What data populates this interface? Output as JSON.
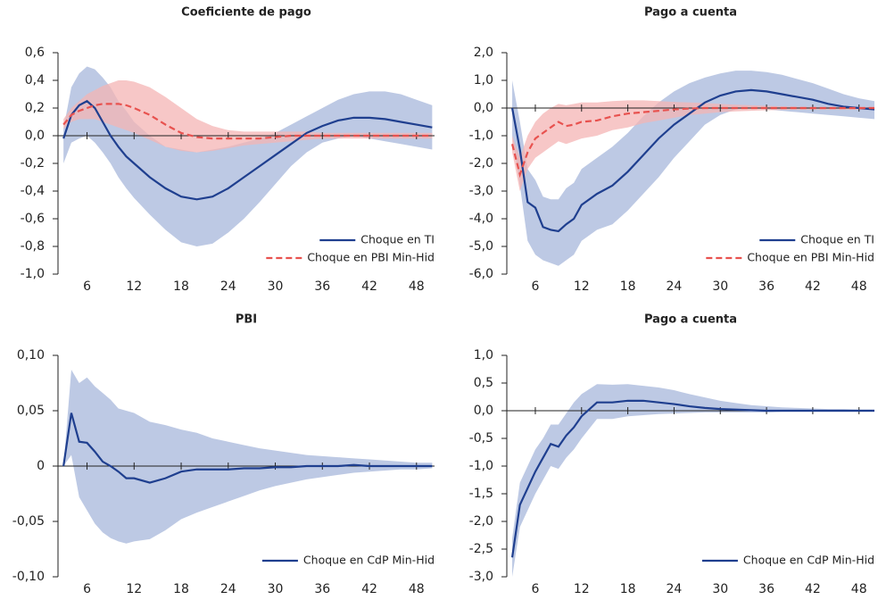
{
  "chart_data": [
    {
      "type": "line",
      "title": "Coeficiente de pago",
      "legend": "lower right",
      "x": [
        3,
        4,
        5,
        6,
        7,
        8,
        9,
        10,
        11,
        12,
        14,
        16,
        18,
        20,
        22,
        24,
        26,
        28,
        30,
        32,
        34,
        36,
        38,
        40,
        42,
        44,
        46,
        48,
        50
      ],
      "xlim": [
        2.3,
        50.3
      ],
      "xticks": [
        6,
        12,
        18,
        24,
        30,
        36,
        42,
        48
      ],
      "ylim": [
        -1.0,
        0.6
      ],
      "yticks": [
        {
          "value": 0.6,
          "label": "0,6"
        },
        {
          "value": 0.4,
          "label": "0,4"
        },
        {
          "value": 0.2,
          "label": "0,2"
        },
        {
          "value": 0,
          "label": "0,0"
        },
        {
          "value": -0.2,
          "label": "-0,2"
        },
        {
          "value": -0.4,
          "label": "-0,4"
        },
        {
          "value": -0.6,
          "label": "-0,6"
        },
        {
          "value": -0.8,
          "label": "-0,8"
        },
        {
          "value": -1.0,
          "label": "-1,0"
        }
      ],
      "bands": [
        {
          "color": "#a7b7db",
          "upper": [
            0.05,
            0.35,
            0.45,
            0.5,
            0.48,
            0.42,
            0.35,
            0.25,
            0.18,
            0.1,
            0.0,
            -0.08,
            -0.1,
            -0.12,
            -0.1,
            -0.08,
            -0.05,
            -0.02,
            0.02,
            0.08,
            0.14,
            0.2,
            0.26,
            0.3,
            0.32,
            0.32,
            0.3,
            0.26,
            0.22
          ],
          "lower": [
            -0.2,
            -0.05,
            -0.02,
            0.0,
            -0.05,
            -0.12,
            -0.2,
            -0.3,
            -0.38,
            -0.45,
            -0.57,
            -0.68,
            -0.77,
            -0.8,
            -0.78,
            -0.7,
            -0.6,
            -0.48,
            -0.35,
            -0.22,
            -0.12,
            -0.05,
            -0.02,
            0.0,
            -0.02,
            -0.04,
            -0.06,
            -0.08,
            -0.1
          ]
        },
        {
          "color": "#f4b4b4",
          "upper": [
            0.12,
            0.2,
            0.25,
            0.3,
            0.33,
            0.36,
            0.38,
            0.4,
            0.4,
            0.39,
            0.35,
            0.28,
            0.2,
            0.12,
            0.07,
            0.04,
            0.03,
            0.03,
            0.03,
            0.03,
            0.03,
            0.02,
            0.02,
            0.02,
            0.02,
            0.02,
            0.02,
            0.02,
            0.02
          ],
          "lower": [
            0.05,
            0.1,
            0.12,
            0.12,
            0.12,
            0.1,
            0.08,
            0.06,
            0.04,
            0.02,
            -0.03,
            -0.08,
            -0.11,
            -0.12,
            -0.11,
            -0.09,
            -0.07,
            -0.06,
            -0.05,
            -0.04,
            -0.03,
            -0.02,
            -0.02,
            -0.02,
            -0.02,
            -0.02,
            -0.02,
            -0.02,
            -0.02
          ]
        }
      ],
      "series": [
        {
          "name": "Choque en TI",
          "color": "#1f3f8f",
          "dash": false,
          "values": [
            -0.02,
            0.15,
            0.22,
            0.25,
            0.2,
            0.1,
            0.0,
            -0.08,
            -0.15,
            -0.2,
            -0.3,
            -0.38,
            -0.44,
            -0.46,
            -0.44,
            -0.38,
            -0.3,
            -0.22,
            -0.14,
            -0.06,
            0.02,
            0.07,
            0.11,
            0.13,
            0.13,
            0.12,
            0.1,
            0.08,
            0.06
          ]
        },
        {
          "name": "Choque en PBI Min-Hid",
          "color": "#e8524f",
          "dash": true,
          "values": [
            0.08,
            0.15,
            0.18,
            0.2,
            0.22,
            0.23,
            0.23,
            0.23,
            0.22,
            0.2,
            0.15,
            0.08,
            0.02,
            -0.01,
            -0.02,
            -0.02,
            -0.02,
            -0.02,
            -0.01,
            0.0,
            0.0,
            0.0,
            0.0,
            0.0,
            0.0,
            0.0,
            0.0,
            0.0,
            0.0
          ]
        }
      ]
    },
    {
      "type": "line",
      "title": "Pago a cuenta",
      "legend": "lower right",
      "x": [
        3,
        4,
        5,
        6,
        7,
        8,
        9,
        10,
        11,
        12,
        14,
        16,
        18,
        20,
        22,
        24,
        26,
        28,
        30,
        32,
        34,
        36,
        38,
        40,
        42,
        44,
        46,
        48,
        50
      ],
      "xlim": [
        2.3,
        50
      ],
      "xticks": [
        6,
        12,
        18,
        24,
        30,
        36,
        42,
        48
      ],
      "ylim": [
        -6.0,
        2.0
      ],
      "yticks": [
        {
          "value": 2,
          "label": "2,0"
        },
        {
          "value": 1,
          "label": "1,0"
        },
        {
          "value": 0,
          "label": "0,0"
        },
        {
          "value": -1,
          "label": "-1,0"
        },
        {
          "value": -2,
          "label": "-2,0"
        },
        {
          "value": -3,
          "label": "-3,0"
        },
        {
          "value": -4,
          "label": "-4,0"
        },
        {
          "value": -5,
          "label": "-5,0"
        },
        {
          "value": -6,
          "label": "-6,0"
        }
      ],
      "bands": [
        {
          "color": "#a7b7db",
          "upper": [
            1.0,
            -0.5,
            -2.2,
            -2.6,
            -3.2,
            -3.3,
            -3.3,
            -2.9,
            -2.7,
            -2.2,
            -1.8,
            -1.4,
            -0.9,
            -0.3,
            0.2,
            0.6,
            0.9,
            1.1,
            1.25,
            1.35,
            1.35,
            1.3,
            1.2,
            1.05,
            0.9,
            0.7,
            0.5,
            0.35,
            0.25
          ],
          "lower": [
            -1.0,
            -2.8,
            -4.8,
            -5.3,
            -5.5,
            -5.6,
            -5.7,
            -5.5,
            -5.3,
            -4.8,
            -4.4,
            -4.2,
            -3.7,
            -3.1,
            -2.5,
            -1.8,
            -1.2,
            -0.6,
            -0.25,
            -0.05,
            0.0,
            -0.05,
            -0.1,
            -0.15,
            -0.2,
            -0.25,
            -0.3,
            -0.35,
            -0.4
          ]
        },
        {
          "color": "#f4b4b4",
          "upper": [
            -1.0,
            -1.8,
            -1.0,
            -0.5,
            -0.2,
            0.0,
            0.15,
            0.1,
            0.15,
            0.2,
            0.2,
            0.25,
            0.28,
            0.28,
            0.25,
            0.22,
            0.2,
            0.18,
            0.15,
            0.12,
            0.1,
            0.08,
            0.06,
            0.05,
            0.04,
            0.04,
            0.04,
            0.04,
            0.04
          ],
          "lower": [
            -1.6,
            -3.0,
            -2.2,
            -1.8,
            -1.6,
            -1.4,
            -1.2,
            -1.3,
            -1.2,
            -1.1,
            -1.0,
            -0.8,
            -0.7,
            -0.55,
            -0.45,
            -0.35,
            -0.25,
            -0.2,
            -0.15,
            -0.12,
            -0.1,
            -0.08,
            -0.07,
            -0.06,
            -0.06,
            -0.06,
            -0.06,
            -0.06,
            -0.06
          ]
        }
      ],
      "series": [
        {
          "name": "Choque en TI",
          "color": "#1f3f8f",
          "dash": false,
          "values": [
            0,
            -1.5,
            -3.4,
            -3.6,
            -4.3,
            -4.4,
            -4.45,
            -4.2,
            -4.0,
            -3.5,
            -3.1,
            -2.8,
            -2.3,
            -1.7,
            -1.1,
            -0.6,
            -0.2,
            0.2,
            0.45,
            0.6,
            0.65,
            0.6,
            0.5,
            0.4,
            0.3,
            0.15,
            0.05,
            0.0,
            -0.05
          ]
        },
        {
          "name": "Choque en PBI Min-Hid",
          "color": "#e8524f",
          "dash": true,
          "values": [
            -1.3,
            -2.4,
            -1.6,
            -1.1,
            -0.9,
            -0.7,
            -0.5,
            -0.65,
            -0.6,
            -0.5,
            -0.45,
            -0.3,
            -0.2,
            -0.15,
            -0.1,
            -0.05,
            -0.02,
            0,
            0,
            0,
            0,
            0,
            0,
            0,
            0,
            0,
            0,
            0,
            0
          ]
        }
      ]
    },
    {
      "type": "line",
      "title": "PBI",
      "legend": "lower right",
      "x": [
        3,
        4,
        5,
        6,
        7,
        8,
        9,
        10,
        11,
        12,
        14,
        16,
        18,
        20,
        22,
        24,
        26,
        28,
        30,
        32,
        34,
        36,
        38,
        40,
        42,
        44,
        46,
        48,
        50
      ],
      "xlim": [
        2.3,
        50.3
      ],
      "xticks": [
        6,
        12,
        18,
        24,
        30,
        36,
        42,
        48
      ],
      "ylim": [
        -0.1,
        0.1
      ],
      "yticks": [
        {
          "value": 0.1,
          "label": "0,10"
        },
        {
          "value": 0.05,
          "label": "0,05"
        },
        0,
        {
          "value": -0.05,
          "label": "-0,05"
        },
        {
          "value": -0.1,
          "label": "-0,10"
        }
      ],
      "bands": [
        {
          "color": "#a7b7db",
          "upper": [
            0,
            0.087,
            0.075,
            0.08,
            0.072,
            0.066,
            0.06,
            0.052,
            0.05,
            0.048,
            0.04,
            0.037,
            0.033,
            0.03,
            0.025,
            0.022,
            0.019,
            0.016,
            0.014,
            0.012,
            0.01,
            0.009,
            0.008,
            0.007,
            0.006,
            0.005,
            0.004,
            0.003,
            0.003
          ],
          "lower": [
            0,
            0.01,
            -0.028,
            -0.04,
            -0.052,
            -0.06,
            -0.065,
            -0.068,
            -0.07,
            -0.068,
            -0.066,
            -0.058,
            -0.048,
            -0.042,
            -0.037,
            -0.032,
            -0.027,
            -0.022,
            -0.018,
            -0.015,
            -0.012,
            -0.01,
            -0.008,
            -0.006,
            -0.005,
            -0.004,
            -0.003,
            -0.003,
            -0.002
          ]
        }
      ],
      "series": [
        {
          "name": "Choque en CdP Min-Hid",
          "color": "#1f3f8f",
          "dash": false,
          "values": [
            0,
            0.048,
            0.022,
            0.021,
            0.013,
            0.004,
            0.0,
            -0.005,
            -0.011,
            -0.011,
            -0.015,
            -0.011,
            -0.005,
            -0.003,
            -0.003,
            -0.003,
            -0.002,
            -0.002,
            -0.001,
            -0.001,
            0,
            0,
            0,
            0.001,
            0,
            0,
            0,
            0,
            0
          ]
        }
      ]
    },
    {
      "type": "line",
      "title": "Pago a cuenta",
      "legend": "lower right",
      "x": [
        3,
        4,
        5,
        6,
        7,
        8,
        9,
        10,
        11,
        12,
        14,
        16,
        18,
        20,
        22,
        24,
        26,
        28,
        30,
        32,
        34,
        36,
        38,
        40,
        42,
        44,
        46,
        48,
        50
      ],
      "xlim": [
        2.3,
        50
      ],
      "xticks": [
        6,
        12,
        18,
        24,
        30,
        36,
        42,
        48
      ],
      "ylim": [
        -3.0,
        1.0
      ],
      "yticks": [
        {
          "value": 1,
          "label": "1,0"
        },
        {
          "value": 0.5,
          "label": "0,5"
        },
        {
          "value": 0,
          "label": "0,0"
        },
        {
          "value": -0.5,
          "label": "-0,5"
        },
        {
          "value": -1,
          "label": "-1,0"
        },
        {
          "value": -1.5,
          "label": "-1,5"
        },
        {
          "value": -2,
          "label": "-2,0"
        },
        {
          "value": -2.5,
          "label": "-2,5"
        },
        {
          "value": -3,
          "label": "-3,0"
        }
      ],
      "bands": [
        {
          "color": "#a7b7db",
          "upper": [
            -2.3,
            -1.3,
            -1.0,
            -0.7,
            -0.5,
            -0.25,
            -0.25,
            -0.05,
            0.15,
            0.3,
            0.48,
            0.47,
            0.48,
            0.45,
            0.42,
            0.37,
            0.3,
            0.24,
            0.18,
            0.14,
            0.1,
            0.08,
            0.06,
            0.05,
            0.04,
            0.03,
            0.03,
            0.02,
            0.02
          ],
          "lower": [
            -3.0,
            -2.1,
            -1.8,
            -1.5,
            -1.25,
            -1.0,
            -1.05,
            -0.85,
            -0.7,
            -0.5,
            -0.15,
            -0.15,
            -0.1,
            -0.08,
            -0.06,
            -0.05,
            -0.04,
            -0.03,
            -0.03,
            -0.03,
            -0.03,
            -0.03,
            -0.02,
            -0.02,
            -0.02,
            -0.02,
            -0.02,
            -0.02,
            -0.02
          ]
        }
      ],
      "series": [
        {
          "name": "Choque en CdP Min-Hid",
          "color": "#1f3f8f",
          "dash": false,
          "values": [
            -2.65,
            -1.7,
            -1.4,
            -1.1,
            -0.85,
            -0.6,
            -0.65,
            -0.45,
            -0.3,
            -0.1,
            0.15,
            0.15,
            0.18,
            0.18,
            0.15,
            0.12,
            0.08,
            0.05,
            0.03,
            0.02,
            0.01,
            0,
            0,
            0,
            0,
            0,
            0,
            0,
            0
          ]
        }
      ]
    }
  ]
}
